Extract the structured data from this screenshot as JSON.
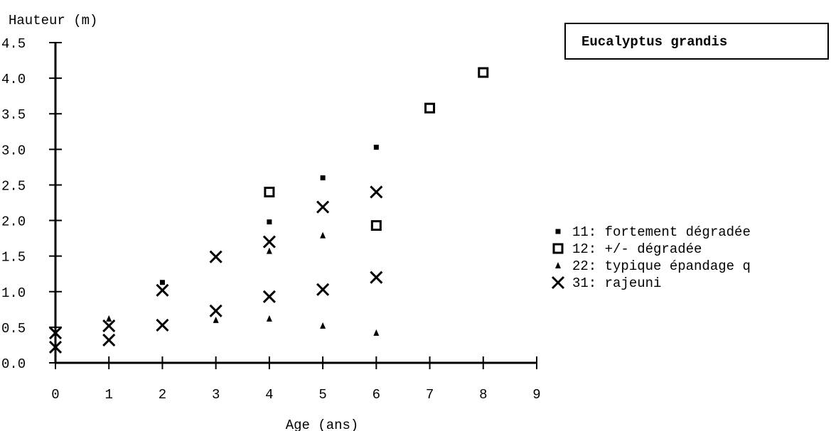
{
  "chart_data": {
    "type": "scatter",
    "title": "Eucalyptus grandis",
    "xlabel": "Age (ans)",
    "ylabel": "Hauteur (m)",
    "xlim": [
      0,
      9
    ],
    "ylim": [
      0,
      4.5
    ],
    "x_ticks": [
      "0",
      "1",
      "2",
      "3",
      "4",
      "5",
      "6",
      "7",
      "8",
      "9"
    ],
    "y_ticks": [
      "0.0",
      "0.5",
      "1.0",
      "1.5",
      "2.0",
      "2.5",
      "3.0",
      "3.5",
      "4.0",
      "4.5"
    ],
    "legend_position": "right",
    "series": [
      {
        "name": "11: fortement dégradée",
        "marker": "small-square",
        "points": [
          [
            2,
            1.13
          ],
          [
            4,
            1.98
          ],
          [
            5,
            2.6
          ],
          [
            6,
            3.03
          ]
        ]
      },
      {
        "name": "12: +/- dégradée",
        "marker": "hollow-square",
        "points": [
          [
            4,
            2.4
          ],
          [
            6,
            1.93
          ],
          [
            7,
            3.58
          ],
          [
            8,
            4.08
          ]
        ]
      },
      {
        "name": "22: typique épandage q",
        "marker": "triangle",
        "points": [
          [
            1,
            0.62
          ],
          [
            3,
            0.6
          ],
          [
            4,
            0.62
          ],
          [
            4,
            1.57
          ],
          [
            5,
            0.52
          ],
          [
            5,
            1.79
          ],
          [
            6,
            0.42
          ]
        ]
      },
      {
        "name": "31: rajeuni",
        "marker": "x",
        "points": [
          [
            0,
            0.42
          ],
          [
            0,
            0.22
          ],
          [
            1,
            0.52
          ],
          [
            1,
            0.32
          ],
          [
            2,
            1.02
          ],
          [
            2,
            0.53
          ],
          [
            3,
            1.49
          ],
          [
            3,
            0.73
          ],
          [
            4,
            1.7
          ],
          [
            4,
            0.93
          ],
          [
            5,
            2.19
          ],
          [
            5,
            1.03
          ],
          [
            6,
            2.4
          ],
          [
            6,
            1.2
          ]
        ]
      }
    ]
  }
}
